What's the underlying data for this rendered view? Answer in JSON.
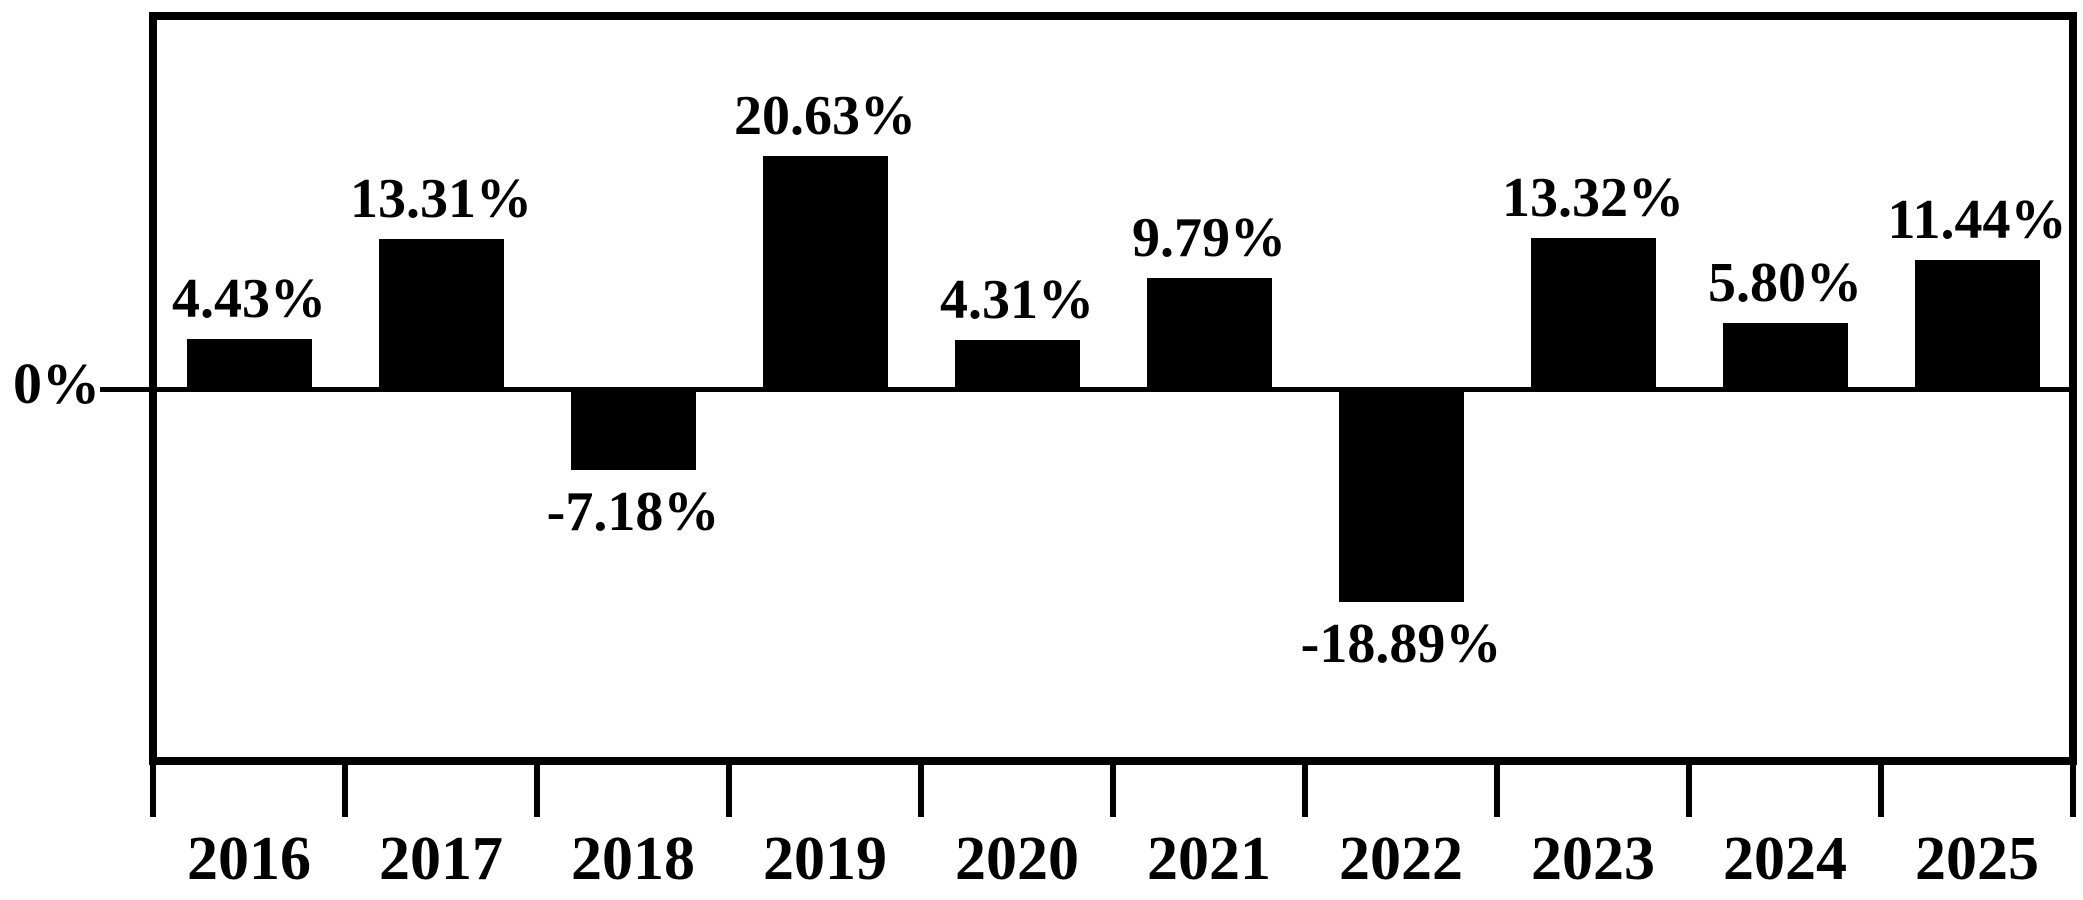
{
  "chart_data": {
    "type": "bar",
    "title": "",
    "categories": [
      "2016",
      "2017",
      "2018",
      "2019",
      "2020",
      "2021",
      "2022",
      "2023",
      "2024",
      "2025"
    ],
    "values": [
      4.43,
      13.31,
      -7.18,
      20.63,
      4.31,
      9.79,
      -18.89,
      13.32,
      5.8,
      11.44
    ],
    "value_labels": [
      "4.43%",
      "13.31%",
      "-7.18%",
      "20.63%",
      "4.31%",
      "9.79%",
      "-18.89%",
      "13.32%",
      "5.80%",
      "11.44%"
    ],
    "xlabel": "",
    "ylabel": "",
    "y_axis": {
      "zero_label": "0%"
    },
    "ylim": [
      -33,
      33
    ],
    "grid": false,
    "legend": false,
    "colors": {
      "bar": "#000000",
      "axis": "#000000",
      "background": "#ffffff",
      "text": "#000000"
    }
  }
}
